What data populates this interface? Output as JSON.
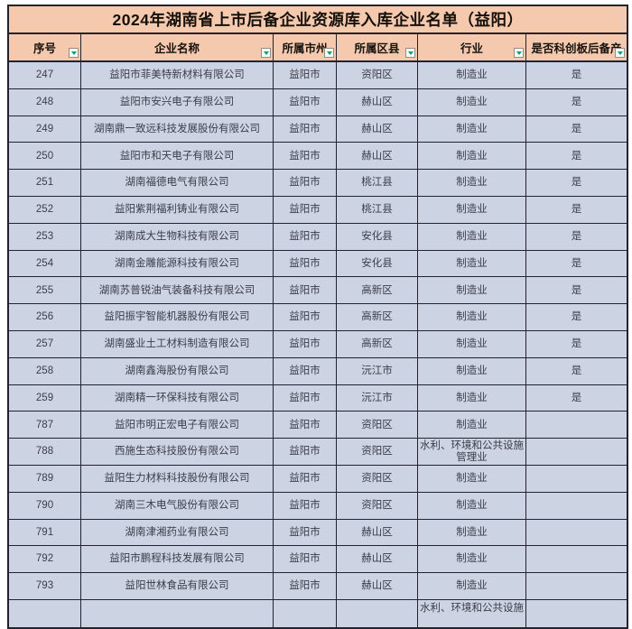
{
  "page": {
    "title": "2024年湖南省上市后备企业资源库入库企业名单（益阳）"
  },
  "table": {
    "columns": [
      "序号",
      "企业名称",
      "所属市州",
      "所属区县",
      "行业",
      "是否科创板后备产"
    ],
    "column_keys": [
      "serial-no",
      "company-name",
      "city",
      "district",
      "industry",
      "star-board-reserve"
    ],
    "rows": [
      [
        "247",
        "益阳市菲美特新材料有限公司",
        "益阳市",
        "资阳区",
        "制造业",
        "是"
      ],
      [
        "248",
        "益阳市安兴电子有限公司",
        "益阳市",
        "赫山区",
        "制造业",
        "是"
      ],
      [
        "249",
        "湖南鼎一致远科技发展股份有限公司",
        "益阳市",
        "赫山区",
        "制造业",
        "是"
      ],
      [
        "250",
        "益阳市和天电子有限公司",
        "益阳市",
        "赫山区",
        "制造业",
        "是"
      ],
      [
        "251",
        "湖南福德电气有限公司",
        "益阳市",
        "桃江县",
        "制造业",
        "是"
      ],
      [
        "252",
        "益阳紫荆福利铸业有限公司",
        "益阳市",
        "桃江县",
        "制造业",
        "是"
      ],
      [
        "253",
        "湖南成大生物科技有限公司",
        "益阳市",
        "安化县",
        "制造业",
        "是"
      ],
      [
        "254",
        "湖南金雕能源科技有限公司",
        "益阳市",
        "安化县",
        "制造业",
        "是"
      ],
      [
        "255",
        "湖南苏普锐油气装备科技有限公司",
        "益阳市",
        "高新区",
        "制造业",
        "是"
      ],
      [
        "256",
        "益阳振宇智能机器股份有限公司",
        "益阳市",
        "高新区",
        "制造业",
        "是"
      ],
      [
        "257",
        "湖南盛业土工材料制造有限公司",
        "益阳市",
        "高新区",
        "制造业",
        "是"
      ],
      [
        "258",
        "湖南鑫海股份有限公司",
        "益阳市",
        "沅江市",
        "制造业",
        "是"
      ],
      [
        "259",
        "湖南精一环保科技有限公司",
        "益阳市",
        "沅江市",
        "制造业",
        "是"
      ],
      [
        "787",
        "益阳市明正宏电子有限公司",
        "益阳市",
        "资阳区",
        "制造业",
        ""
      ],
      [
        "788",
        "西施生态科技股份有限公司",
        "益阳市",
        "资阳区",
        "水利、环境和公共设施管理业",
        ""
      ],
      [
        "789",
        "益阳生力材料科技股份有限公司",
        "益阳市",
        "资阳区",
        "制造业",
        ""
      ],
      [
        "790",
        "湖南三木电气股份有限公司",
        "益阳市",
        "资阳区",
        "制造业",
        ""
      ],
      [
        "791",
        "湖南津湘药业有限公司",
        "益阳市",
        "赫山区",
        "制造业",
        ""
      ],
      [
        "792",
        "益阳市鹏程科技发展有限公司",
        "益阳市",
        "赫山区",
        "制造业",
        ""
      ],
      [
        "793",
        "益阳世林食品有限公司",
        "益阳市",
        "赫山区",
        "制造业",
        ""
      ]
    ],
    "partial_row_industry": "水利、环境和公共设施",
    "filter_icon": "filter-dropdown"
  },
  "colors": {
    "title_band": "#f4c9ae",
    "header_band": "#f4c9ae",
    "row_background": "#ccd4e3",
    "grid_border": "#23232f",
    "filter_arrow": "#159a83"
  }
}
